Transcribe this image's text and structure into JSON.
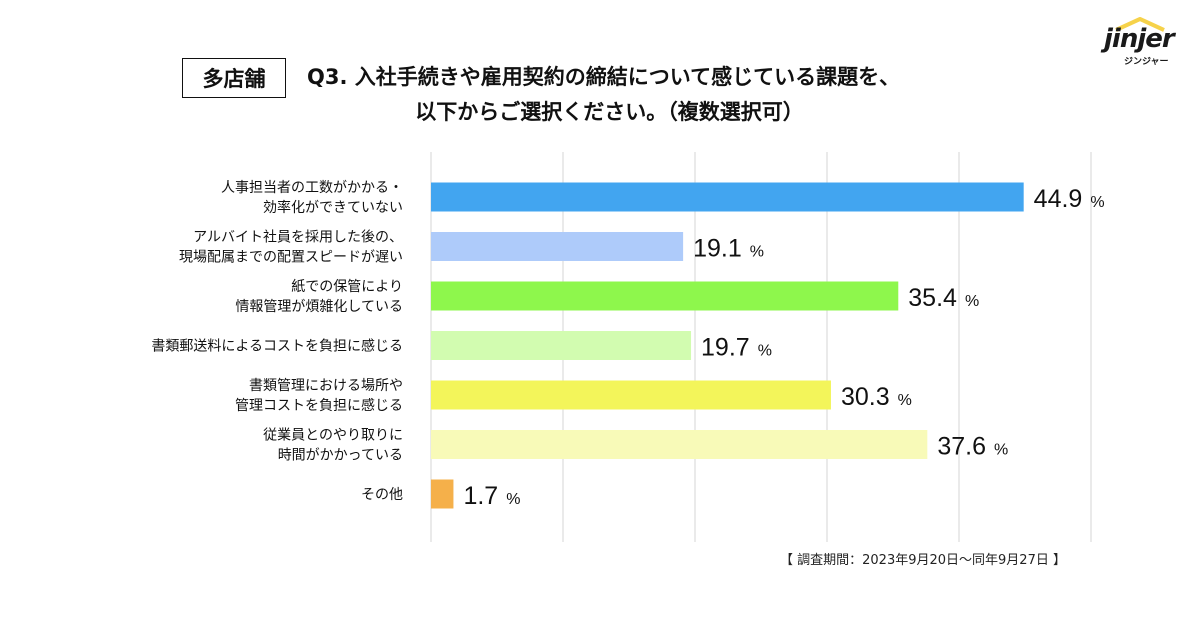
{
  "header": {
    "tag": "多店舗",
    "title_line1": "Q3. 入社手続きや雇用契約の締結について感じている課題を、",
    "title_line2": "以下からご選択ください。（複数選択可）"
  },
  "logo": {
    "word": "jinjer",
    "sub": "ジンジャー",
    "accent_color": "#f6d24a"
  },
  "footer": {
    "period": "【 調査期間：2023年9月20日〜同年9月27日 】"
  },
  "chart_data": {
    "type": "bar",
    "orientation": "horizontal",
    "unit": "%",
    "xlim": [
      0,
      50
    ],
    "grid": true,
    "categories": [
      [
        "人事担当者の工数がかかる・",
        "効率化ができていない"
      ],
      [
        "アルバイト社員を採用した後の、",
        "現場配属までの配置スピードが遅い"
      ],
      [
        "紙での保管により",
        "情報管理が煩雑化している"
      ],
      [
        "書類郵送料によるコストを負担に感じる"
      ],
      [
        "書類管理における場所や",
        "管理コストを負担に感じる"
      ],
      [
        "従業員とのやり取りに",
        "時間がかかっている"
      ],
      [
        "その他"
      ]
    ],
    "values": [
      44.9,
      19.1,
      35.4,
      19.7,
      30.3,
      37.6,
      1.7
    ],
    "value_labels": [
      "44.9",
      "19.1",
      "35.4",
      "19.7",
      "30.3",
      "37.6",
      "1.7"
    ],
    "colors": [
      "#42a5f0",
      "#aecbfa",
      "#8ef74c",
      "#d2fcb0",
      "#f3f55a",
      "#f8fab8",
      "#f5b04a"
    ]
  }
}
